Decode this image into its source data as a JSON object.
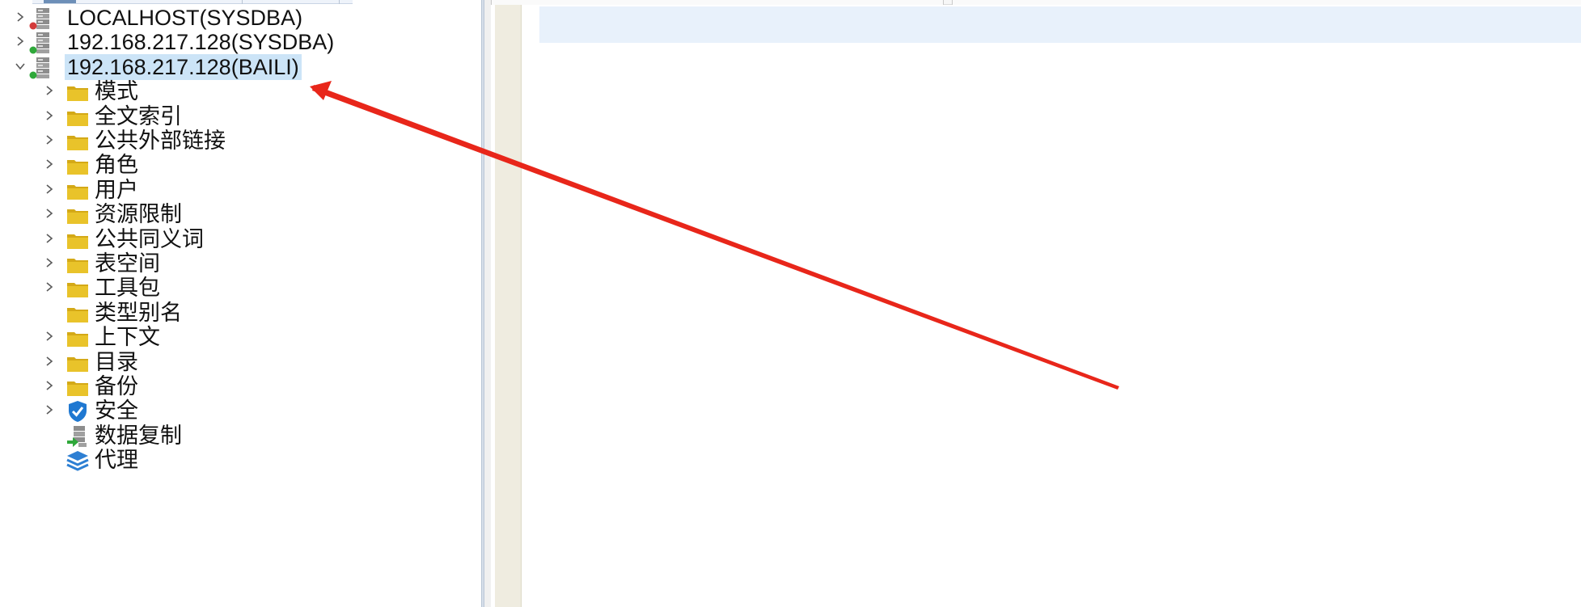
{
  "tree": {
    "connections": [
      {
        "label": "LOCALHOST(SYSDBA)",
        "expanded": false,
        "status": "disconnected",
        "status_color": "#d33b3b"
      },
      {
        "label": "192.168.217.128(SYSDBA)",
        "expanded": false,
        "status": "connected",
        "status_color": "#2fa83a"
      },
      {
        "label": "192.168.217.128(BAILI)",
        "expanded": true,
        "status": "connected",
        "status_color": "#2fa83a",
        "selected": true
      }
    ],
    "children": [
      {
        "label": "模式",
        "icon": "folder-icon",
        "has_children": true
      },
      {
        "label": "全文索引",
        "icon": "folder-icon",
        "has_children": true
      },
      {
        "label": "公共外部链接",
        "icon": "folder-icon",
        "has_children": true
      },
      {
        "label": "角色",
        "icon": "folder-icon",
        "has_children": true
      },
      {
        "label": "用户",
        "icon": "folder-icon",
        "has_children": true
      },
      {
        "label": "资源限制",
        "icon": "folder-icon",
        "has_children": true
      },
      {
        "label": "公共同义词",
        "icon": "folder-icon",
        "has_children": true
      },
      {
        "label": "表空间",
        "icon": "folder-icon",
        "has_children": true
      },
      {
        "label": "工具包",
        "icon": "folder-icon",
        "has_children": true
      },
      {
        "label": "类型别名",
        "icon": "folder-icon",
        "has_children": false
      },
      {
        "label": "上下文",
        "icon": "folder-icon",
        "has_children": true
      },
      {
        "label": "目录",
        "icon": "folder-icon",
        "has_children": true
      },
      {
        "label": "备份",
        "icon": "folder-icon",
        "has_children": true
      },
      {
        "label": "安全",
        "icon": "shield-icon",
        "has_children": true
      },
      {
        "label": "数据复制",
        "icon": "replication-icon",
        "has_children": false
      },
      {
        "label": "代理",
        "icon": "layers-icon",
        "has_children": false
      }
    ]
  },
  "colors": {
    "folder": "#e9c32a",
    "folder_dark": "#d4a917",
    "selection": "#cce4f7",
    "annotation_arrow": "#e8261a",
    "shield": "#1f78d1",
    "layers": "#2d7fd3",
    "replication_arrow": "#2fa83a"
  },
  "annotation": {
    "type": "arrow",
    "target": "192.168.217.128(BAILI)"
  }
}
